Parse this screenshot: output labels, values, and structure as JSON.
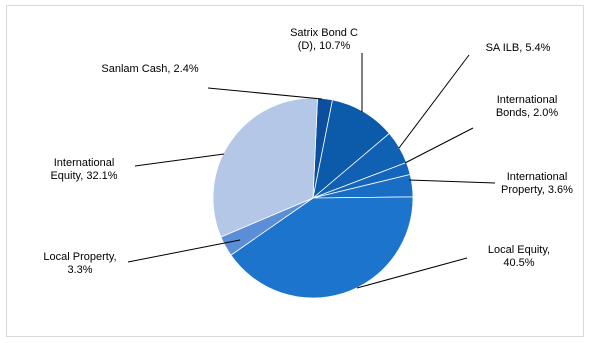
{
  "chart_data": {
    "type": "pie",
    "title": "",
    "slices": [
      {
        "label": "Sanlam Cash, 2.4%",
        "lines": [
          "Sanlam Cash, 2.4%"
        ],
        "value": 2.4,
        "color": "#0B4F9E"
      },
      {
        "label": "Satrix Bond C (D), 10.7%",
        "lines": [
          "Satrix Bond C",
          "(D), 10.7%"
        ],
        "value": 10.7,
        "color": "#0C5AAA"
      },
      {
        "label": "SA ILB, 5.4%",
        "lines": [
          "SA ILB, 5.4%"
        ],
        "value": 5.4,
        "color": "#1060B3"
      },
      {
        "label": "International Bonds, 2.0%",
        "lines": [
          "International",
          "Bonds, 2.0%"
        ],
        "value": 2.0,
        "color": "#1466BC"
      },
      {
        "label": "International Property, 3.6%",
        "lines": [
          "International",
          "Property, 3.6%"
        ],
        "value": 3.6,
        "color": "#186DC4"
      },
      {
        "label": "Local Equity, 40.5%",
        "lines": [
          "Local Equity,",
          "40.5%"
        ],
        "value": 40.5,
        "color": "#1C74CC"
      },
      {
        "label": "Local Property, 3.3%",
        "lines": [
          "Local Property,",
          "3.3%"
        ],
        "value": 3.3,
        "color": "#5B8ED6"
      },
      {
        "label": "International Equity, 32.1%",
        "lines": [
          "International",
          "Equity, 32.1%"
        ],
        "value": 32.1,
        "color": "#B4C7E7"
      }
    ],
    "legend": "none",
    "grid": false
  }
}
